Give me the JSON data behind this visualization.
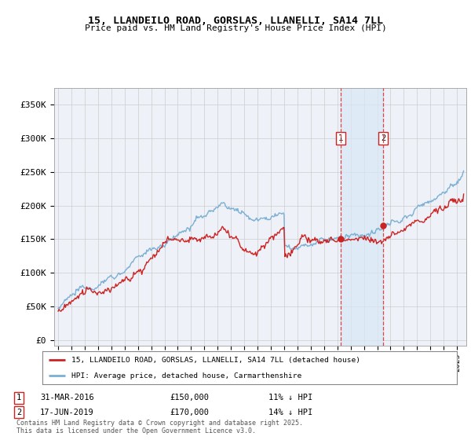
{
  "title_line1": "15, LLANDEILO ROAD, GORSLAS, LLANELLI, SA14 7LL",
  "title_line2": "Price paid vs. HM Land Registry's House Price Index (HPI)",
  "background_color": "#ffffff",
  "plot_background": "#eef2f8",
  "grid_color": "#cccccc",
  "hpi_color": "#7bafd4",
  "price_color": "#cc2222",
  "purchase1_date_label": "31-MAR-2016",
  "purchase1_price": 150000,
  "purchase1_pct": "11% ↓ HPI",
  "purchase2_date_label": "17-JUN-2019",
  "purchase2_price": 170000,
  "purchase2_pct": "14% ↓ HPI",
  "legend_label1": "15, LLANDEILO ROAD, GORSLAS, LLANELLI, SA14 7LL (detached house)",
  "legend_label2": "HPI: Average price, detached house, Carmarthenshire",
  "footer": "Contains HM Land Registry data © Crown copyright and database right 2025.\nThis data is licensed under the Open Government Licence v3.0.",
  "ylim_max": 375000,
  "ylim_min": -8000,
  "yticks": [
    0,
    50000,
    100000,
    150000,
    200000,
    250000,
    300000,
    350000
  ],
  "ytick_labels": [
    "£0",
    "£50K",
    "£100K",
    "£150K",
    "£200K",
    "£250K",
    "£300K",
    "£350K"
  ],
  "purchase1_x": 2016.25,
  "purchase2_x": 2019.46,
  "xmin": 1994.7,
  "xmax": 2025.7
}
